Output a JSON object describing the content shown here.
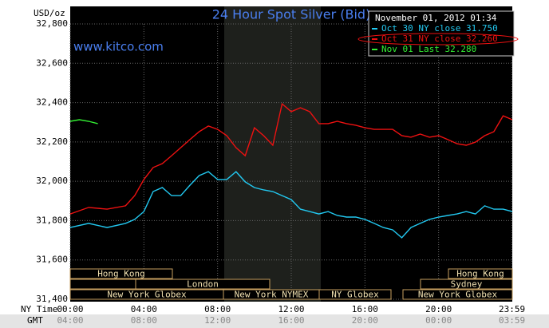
{
  "chart_data": {
    "type": "line",
    "title": "24 Hour Spot Silver (Bid)",
    "y_axis_label": "USD/oz",
    "watermark": "www.kitco.com",
    "timestamp": "November 01, 2012 01:34",
    "x_axis_label": "NY Time",
    "x2_axis_label": "GMT",
    "xlim": [
      0,
      24
    ],
    "xticks": [
      {
        "value": 0,
        "label": "00:00"
      },
      {
        "value": 4,
        "label": "04:00"
      },
      {
        "value": 8,
        "label": "08:00"
      },
      {
        "value": 12,
        "label": "12:00"
      },
      {
        "value": 16,
        "label": "16:00"
      },
      {
        "value": 20,
        "label": "20:00"
      },
      {
        "value": 23.983,
        "label": "23:59"
      }
    ],
    "x2ticks": [
      {
        "value": 0,
        "label": "04:00"
      },
      {
        "value": 4,
        "label": "08:00"
      },
      {
        "value": 8,
        "label": "12:00"
      },
      {
        "value": 12,
        "label": "16:00"
      },
      {
        "value": 16,
        "label": "20:00"
      },
      {
        "value": 20,
        "label": "00:00"
      },
      {
        "value": 23.983,
        "label": "03:59"
      }
    ],
    "ylim": [
      31400,
      32800
    ],
    "yticks": [
      {
        "value": 31400,
        "label": "31,400"
      },
      {
        "value": 31600,
        "label": "31,600"
      },
      {
        "value": 31800,
        "label": "31,800"
      },
      {
        "value": 32000,
        "label": "32,000"
      },
      {
        "value": 32200,
        "label": "32,200"
      },
      {
        "value": 32400,
        "label": "32,400"
      },
      {
        "value": 32600,
        "label": "32,600"
      },
      {
        "value": 32800,
        "label": "32,800"
      }
    ],
    "grid": true,
    "sessions": [
      "Hong Kong",
      "London",
      "New York Globex",
      "New York NYMEX",
      "NY Globex",
      "Hong Kong",
      "Sydney",
      "New York Globex"
    ],
    "series": [
      {
        "name": "Oct 30 NY close 31.750",
        "color": "#22c8f0",
        "x": [
          0,
          1,
          2,
          3,
          3.5,
          4,
          4.5,
          5,
          5.5,
          6,
          6.5,
          7,
          7.5,
          8,
          8.5,
          9,
          9.5,
          10,
          10.5,
          11,
          11.5,
          12,
          12.5,
          13,
          13.5,
          14,
          14.5,
          15,
          15.5,
          16,
          16.5,
          17,
          17.5,
          18,
          18.5,
          19,
          19.5,
          20,
          20.5,
          21,
          21.5,
          22,
          22.5,
          23,
          23.5,
          24
        ],
        "values": [
          31765,
          31786,
          31765,
          31786,
          31806,
          31846,
          31948,
          31968,
          31927,
          31927,
          31980,
          32029,
          32049,
          32009,
          32009,
          32049,
          31997,
          31968,
          31956,
          31948,
          31927,
          31907,
          31858,
          31846,
          31834,
          31846,
          31826,
          31818,
          31818,
          31806,
          31786,
          31765,
          31753,
          31713,
          31765,
          31786,
          31806,
          31818,
          31826,
          31834,
          31846,
          31834,
          31875,
          31858,
          31858,
          31846
        ]
      },
      {
        "name": "Oct 31 NY close 32.260",
        "color": "#ee1111",
        "x": [
          0,
          1,
          2,
          3,
          3.5,
          4,
          4.5,
          5,
          5.5,
          6,
          6.5,
          7,
          7.5,
          8,
          8.5,
          9,
          9.5,
          10,
          10.5,
          11,
          11.5,
          12,
          12.5,
          13,
          13.5,
          14,
          14.5,
          15,
          15.5,
          16,
          16.5,
          17,
          17.5,
          18,
          18.5,
          19,
          19.5,
          20,
          20.5,
          21,
          21.5,
          22,
          22.5,
          23,
          23.5,
          24
        ],
        "values": [
          31834,
          31867,
          31858,
          31875,
          31927,
          32009,
          32070,
          32090,
          32130,
          32171,
          32212,
          32252,
          32281,
          32264,
          32232,
          32171,
          32130,
          32272,
          32232,
          32183,
          32394,
          32354,
          32374,
          32354,
          32293,
          32293,
          32305,
          32293,
          32285,
          32272,
          32264,
          32264,
          32264,
          32232,
          32224,
          32240,
          32224,
          32232,
          32212,
          32191,
          32183,
          32199,
          32232,
          32252,
          32333,
          32313
        ]
      },
      {
        "name": "Nov 01 Last 32.280",
        "color": "#33ee33",
        "x": [
          0,
          0.5,
          1,
          1.5
        ],
        "values": [
          32305,
          32313,
          32305,
          32293
        ]
      }
    ]
  }
}
